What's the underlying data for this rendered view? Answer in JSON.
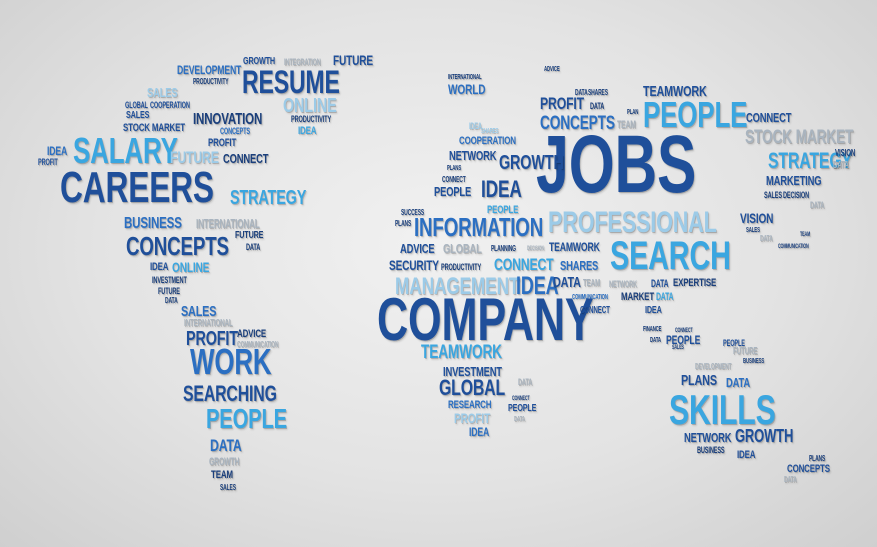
{
  "words": {
    "w1": "DEVELOPMENT",
    "w2": "GROWTH",
    "w3": "INTEGRATION",
    "w4": "FUTURE",
    "w5": "RESUME",
    "w6": "PRODUCTIVITY",
    "w7": "SALES",
    "w8": "GLOBAL",
    "w9": "COOPERATION",
    "w10": "SALES",
    "w11": "STOCK MARKET",
    "w12": "INNOVATION",
    "w13": "CONCEPTS",
    "w14": "ONLINE",
    "w15": "PRODUCTIVITY",
    "w16": "IDEA",
    "w17": "PROFIT",
    "w18": "IDEA",
    "w19": "SALARY",
    "w20": "PROFIT",
    "w21": "FUTURE",
    "w22": "CONNECT",
    "w23": "CAREERS",
    "w24": "STRATEGY",
    "w25": "BUSINESS",
    "w26": "INTERNATIONAL",
    "w27": "CONCEPTS",
    "w28": "FUTURE",
    "w29": "DATA",
    "w30": "IDEA",
    "w31": "ONLINE",
    "w32": "INVESTMENT",
    "w33": "FUTURE",
    "w34": "DATA",
    "w35": "SALES",
    "w36": "INTERNATIONAL",
    "w37": "PROFIT",
    "w38": "ADVICE",
    "w39": "COMMUNICATION",
    "w40": "WORK",
    "w41": "SEARCHING",
    "w42": "PEOPLE",
    "w43": "DATA",
    "w44": "GROWTH",
    "w45": "TEAM",
    "w46": "SALES",
    "w47": "INTERNATIONAL",
    "w48": "WORLD",
    "w49": "ADVICE",
    "w50": "DATA",
    "w51": "SHARES",
    "w52": "TEAMWORK",
    "w53": "PROFIT",
    "w54": "DATA",
    "w55": "PLAN",
    "w56": "PEOPLE",
    "w57": "CONNECT",
    "w58": "CONCEPTS",
    "w59": "TEAM",
    "w60": "IDEA",
    "w61": "SHARES",
    "w62": "STOCK MARKET",
    "w63": "COOPERATION",
    "w64": "JOBS",
    "w65": "NETWORK",
    "w66": "GROWTH",
    "w67": "PLANS",
    "w68": "STRATEGY",
    "w69": "VISION",
    "w70": "CONNECT",
    "w71": "DATA",
    "w72": "PEOPLE",
    "w73": "IDEA",
    "w74": "MARKETING",
    "w75": "SALES",
    "w76": "DECISION",
    "w77": "DATA",
    "w78": "SUCCESS",
    "w79": "PEOPLE",
    "w80": "PROFESSIONAL",
    "w81": "VISION",
    "w82": "PLANS",
    "w83": "INFORMATION",
    "w84": "SALES",
    "w85": "DATA",
    "w86": "TEAM",
    "w87": "ADVICE",
    "w88": "GLOBAL",
    "w89": "PLANNING",
    "w90": "DECISION",
    "w91": "TEAMWORK",
    "w92": "SEARCH",
    "w93": "COMMUNICATION",
    "w94": "SECURITY",
    "w95": "PRODUCTIVITY",
    "w96": "CONNECT",
    "w97": "SHARES",
    "w98": "MANAGEMENT",
    "w99": "IDEA",
    "w100": "DATA",
    "w101": "TEAM",
    "w102": "NETWORK",
    "w103": "DATA",
    "w104": "EXPERTISE",
    "w105": "COMMUNICATION",
    "w106": "MARKET",
    "w107": "DATA",
    "w108": "COMPANY",
    "w109": "CONNECT",
    "w110": "IDEA",
    "w111": "CONNECT",
    "w112": "FINANCE",
    "w113": "PEOPLE",
    "w114": "PEOPLE",
    "w115": "DATA",
    "w116": "SALES",
    "w117": "FUTURE",
    "w118": "TEAMWORK",
    "w119": "INVESTMENT",
    "w120": "DATA",
    "w121": "DEVELOPMENT",
    "w122": "BUSINESS",
    "w123": "GLOBAL",
    "w124": "PLANS",
    "w125": "DATA",
    "w126": "CONNECT",
    "w127": "RESEARCH",
    "w128": "PEOPLE",
    "w129": "DATA",
    "w130": "PROFIT",
    "w131": "IDEA",
    "w132": "SKILLS",
    "w133": "NETWORK",
    "w134": "GROWTH",
    "w135": "BUSINESS",
    "w136": "IDEA",
    "w137": "PLANS",
    "w138": "CONCEPTS",
    "w139": "DATA"
  },
  "colors": {
    "dark": "#1f4f9a",
    "mid": "#2b6fc2",
    "light": "#3aa6e0",
    "pale": "#9ccbe8",
    "gray": "#a9b4bf",
    "background": "#e3e3e3"
  }
}
